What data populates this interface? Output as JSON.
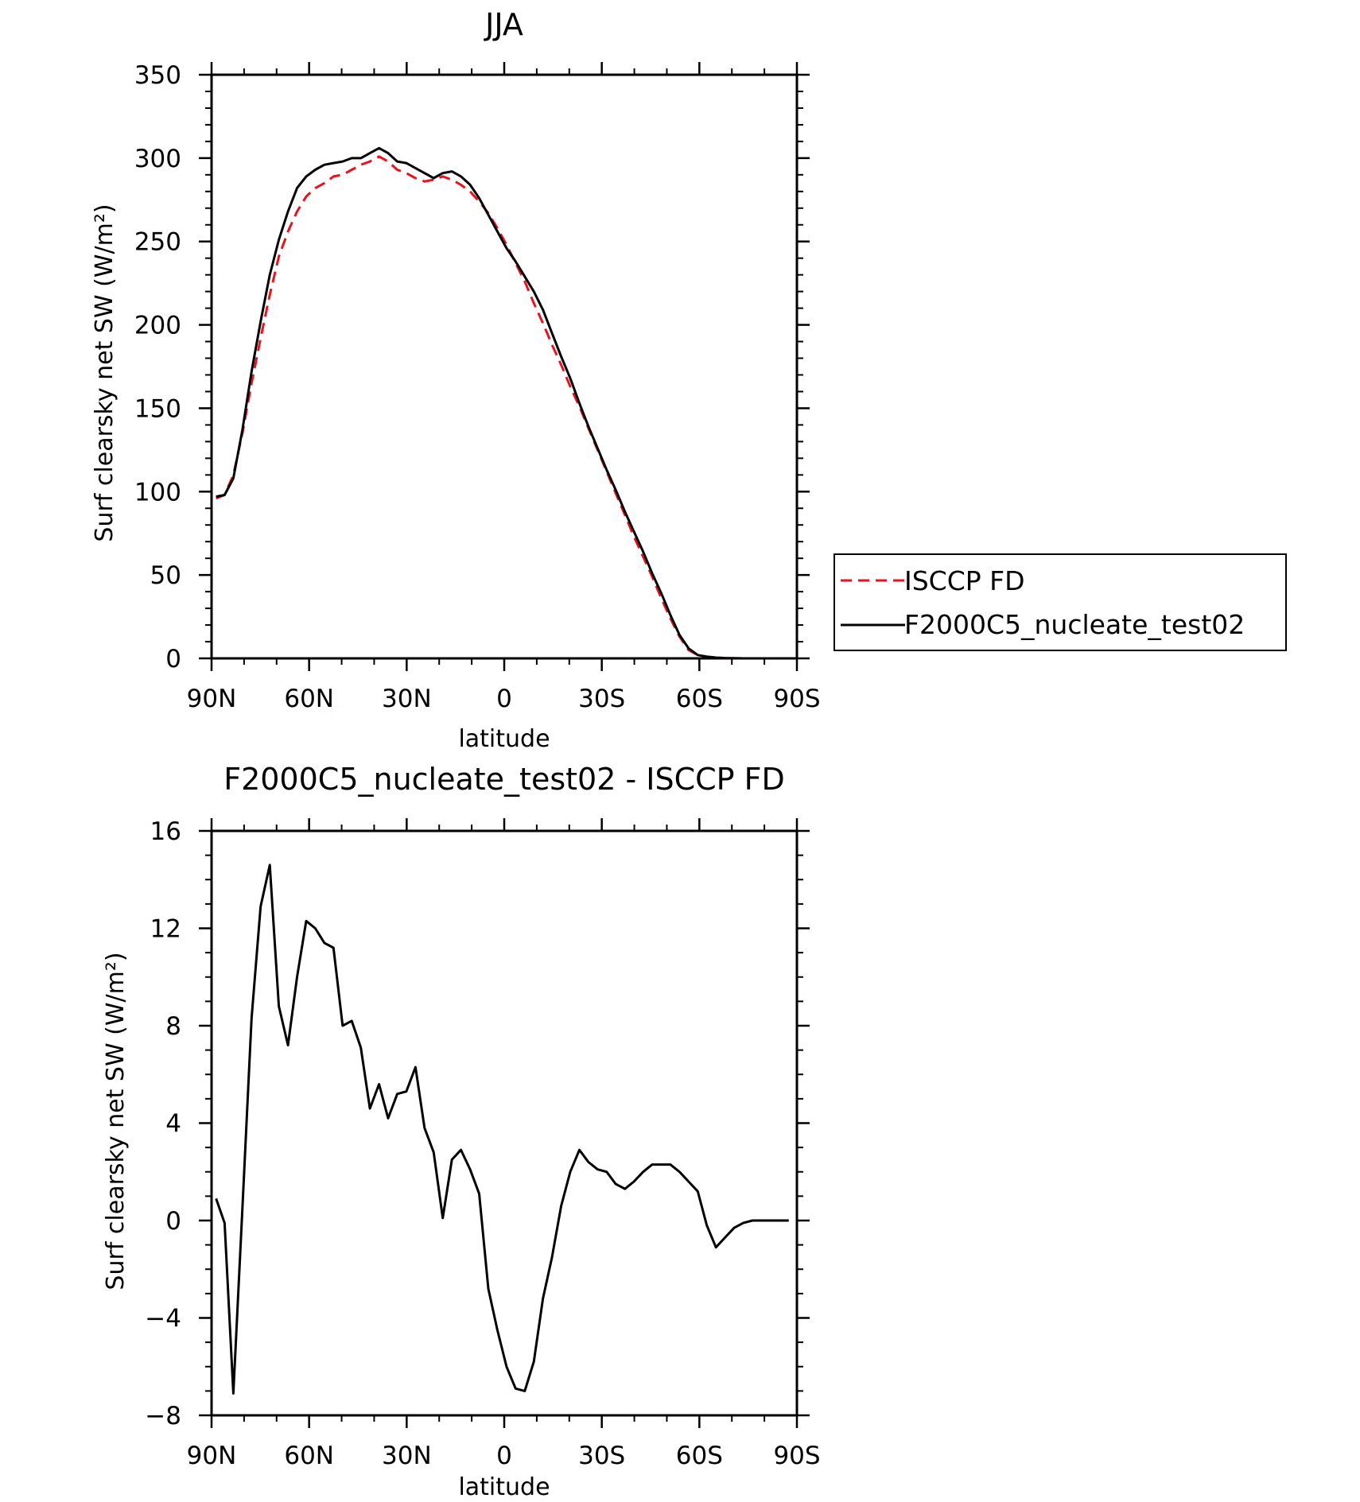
{
  "chart_data": [
    {
      "type": "line",
      "title": "JJA",
      "xlabel": "latitude",
      "ylabel": "Surf clearsky net SW (W/m²)",
      "x_tick_labels": [
        "90N",
        "60N",
        "30N",
        "0",
        "30S",
        "60S",
        "90S"
      ],
      "x_ticks": [
        90,
        60,
        30,
        0,
        -30,
        -60,
        -90
      ],
      "xlim": [
        90,
        -90
      ],
      "y_ticks": [
        0,
        50,
        100,
        150,
        200,
        250,
        300,
        350
      ],
      "ylim": [
        0,
        350
      ],
      "grid": false,
      "legend_position": "right",
      "series": [
        {
          "name": "ISCCP FD",
          "color": "#e8131f",
          "dash": "dashed",
          "x": [
            88.6,
            86.0,
            83.3,
            80.5,
            77.7,
            74.9,
            72.1,
            69.3,
            66.5,
            63.7,
            60.9,
            58.1,
            55.3,
            52.5,
            49.7,
            46.9,
            44.1,
            41.3,
            38.5,
            35.7,
            32.9,
            30.1,
            27.3,
            24.5,
            21.7,
            18.9,
            16.1,
            13.3,
            10.5,
            7.7,
            4.9,
            2.1,
            -0.7,
            -3.5,
            -6.3,
            -9.1,
            -11.9,
            -14.7,
            -17.5,
            -20.3,
            -23.1,
            -25.9,
            -28.7,
            -31.5,
            -34.3,
            -37.1,
            -39.9,
            -42.7,
            -45.5,
            -48.3,
            -51.1,
            -53.9,
            -56.7,
            -59.5,
            -62.3,
            -65.1,
            -67.9,
            -70.7,
            -73.5,
            -76.3,
            -79.1,
            -81.9,
            -84.7,
            -87.5
          ],
          "values": [
            96,
            98,
            110,
            135,
            165,
            192,
            218,
            241,
            256,
            268,
            277,
            282,
            285,
            289,
            290,
            293,
            296,
            298,
            301,
            298,
            293,
            291,
            288,
            286,
            287,
            289,
            287,
            284,
            280,
            274,
            267,
            258,
            248,
            237,
            226,
            213,
            201,
            188,
            176,
            163,
            151,
            138,
            125,
            112,
            99,
            86,
            73,
            61,
            49,
            36,
            24,
            13,
            5,
            2,
            1,
            0.5,
            0.2,
            0.1,
            0,
            0,
            0,
            0,
            0,
            0
          ]
        },
        {
          "name": "F2000C5_nucleate_test02",
          "color": "#000000",
          "dash": "solid",
          "x": [
            88.6,
            86.0,
            83.3,
            80.5,
            77.7,
            74.9,
            72.1,
            69.3,
            66.5,
            63.7,
            60.9,
            58.1,
            55.3,
            52.5,
            49.7,
            46.9,
            44.1,
            41.3,
            38.5,
            35.7,
            32.9,
            30.1,
            27.3,
            24.5,
            21.7,
            18.9,
            16.1,
            13.3,
            10.5,
            7.7,
            4.9,
            2.1,
            -0.7,
            -3.5,
            -6.3,
            -9.1,
            -11.9,
            -14.7,
            -17.5,
            -20.3,
            -23.1,
            -25.9,
            -28.7,
            -31.5,
            -34.3,
            -37.1,
            -39.9,
            -42.7,
            -45.5,
            -48.3,
            -51.1,
            -53.9,
            -56.7,
            -59.5,
            -62.3,
            -65.1,
            -67.9,
            -70.7,
            -73.5,
            -76.3,
            -79.1,
            -81.9,
            -84.7,
            -87.5
          ],
          "values": [
            97,
            98,
            108,
            137,
            172,
            202,
            230,
            251,
            268,
            282,
            289,
            293,
            296,
            297,
            298,
            300,
            300,
            303,
            306,
            303,
            298,
            297,
            294,
            291,
            288,
            291,
            292,
            289,
            284,
            276,
            266,
            256,
            246,
            238,
            229,
            220,
            209,
            195,
            181,
            168,
            153,
            139,
            126,
            113,
            101,
            88,
            76,
            64,
            51,
            39,
            26,
            14,
            6,
            2,
            1,
            0.5,
            0.2,
            0.1,
            0,
            0,
            0,
            0,
            0,
            0
          ]
        }
      ]
    },
    {
      "type": "line",
      "title": "F2000C5_nucleate_test02 - ISCCP FD",
      "xlabel": "latitude",
      "ylabel": "Surf clearsky net SW (W/m²)",
      "x_tick_labels": [
        "90N",
        "60N",
        "30N",
        "0",
        "30S",
        "60S",
        "90S"
      ],
      "x_ticks": [
        90,
        60,
        30,
        0,
        -30,
        -60,
        -90
      ],
      "xlim": [
        90,
        -90
      ],
      "y_ticks": [
        -8,
        -4,
        0,
        4,
        8,
        12,
        16
      ],
      "ylim": [
        -8,
        16
      ],
      "grid": false,
      "series": [
        {
          "color": "#000000",
          "dash": "solid",
          "x": [
            88.6,
            86.0,
            83.3,
            80.5,
            77.7,
            74.9,
            72.1,
            69.3,
            66.5,
            63.7,
            60.9,
            58.1,
            55.3,
            52.5,
            49.7,
            46.9,
            44.1,
            41.3,
            38.5,
            35.7,
            32.9,
            30.1,
            27.3,
            24.5,
            21.7,
            18.9,
            16.1,
            13.3,
            10.5,
            7.7,
            4.9,
            2.1,
            -0.7,
            -3.5,
            -6.3,
            -9.1,
            -11.9,
            -14.7,
            -17.5,
            -20.3,
            -23.1,
            -25.9,
            -28.7,
            -31.5,
            -34.3,
            -37.1,
            -39.9,
            -42.7,
            -45.5,
            -48.3,
            -51.1,
            -53.9,
            -56.7,
            -59.5,
            -62.3,
            -65.1,
            -67.9,
            -70.7,
            -73.5,
            -76.3,
            -79.1,
            -81.9,
            -84.7,
            -87.5
          ],
          "values": [
            0.9,
            -0.1,
            -7.1,
            0.5,
            8.3,
            12.9,
            14.6,
            8.8,
            7.2,
            10.0,
            12.3,
            12.0,
            11.4,
            11.2,
            8.0,
            8.2,
            7.1,
            4.6,
            5.6,
            4.2,
            5.2,
            5.3,
            6.3,
            3.8,
            2.8,
            0.1,
            2.5,
            2.9,
            2.1,
            1.1,
            -2.8,
            -4.5,
            -6.0,
            -6.9,
            -7.0,
            -5.8,
            -3.2,
            -1.5,
            0.6,
            2.0,
            2.9,
            2.4,
            2.1,
            2.0,
            1.5,
            1.3,
            1.6,
            2.0,
            2.3,
            2.3,
            2.3,
            2.0,
            1.6,
            1.2,
            -0.2,
            -1.1,
            -0.7,
            -0.3,
            -0.1,
            0.0,
            0.0,
            0.0,
            0.0,
            0.0
          ]
        }
      ]
    }
  ]
}
